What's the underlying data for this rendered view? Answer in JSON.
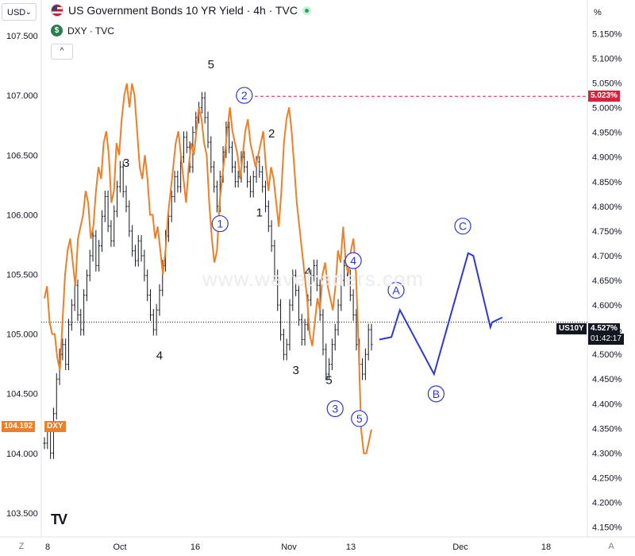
{
  "toolbar": {
    "currency_label": "USD",
    "percent_label": "%",
    "collapse_glyph": "^",
    "zoom_label": "Z",
    "scale_label": "A"
  },
  "legend": {
    "main_title": "US Government Bonds 10 YR Yield · 4h · TVC",
    "main_icon": "us-flag-icon",
    "second_title": "DXY · TVC",
    "second_icon": "dollar-icon",
    "status": "market-open"
  },
  "watermark": "www.wavetraders.com",
  "logo": "TV",
  "colors": {
    "yield": "#131722",
    "dxy": "#f07e26",
    "waves": "#2f36d4",
    "target": "#d6223f",
    "yield_badge": "#131722"
  },
  "chart_data": {
    "type": "line",
    "title": "US Government Bonds 10 YR Yield · 4h · TVC",
    "x_ticks": [
      "8",
      "Oct",
      "16",
      "Nov",
      "13",
      "Dec",
      "18"
    ],
    "y_left_ticks": [
      "107.500",
      "107.000",
      "106.500",
      "106.000",
      "105.500",
      "105.000",
      "104.500",
      "104.000",
      "103.500"
    ],
    "y_right_ticks": [
      "5.150%",
      "5.100%",
      "5.050%",
      "5.000%",
      "4.950%",
      "4.900%",
      "4.850%",
      "4.800%",
      "4.750%",
      "4.700%",
      "4.650%",
      "4.600%",
      "4.550%",
      "4.500%",
      "4.450%",
      "4.400%",
      "4.350%",
      "4.300%",
      "4.250%",
      "4.200%",
      "4.150%"
    ],
    "y_left_range": [
      103.3,
      107.6
    ],
    "y_right_range": [
      4.13,
      5.17
    ],
    "grid": false,
    "series": [
      {
        "name": "DXY",
        "axis": "left",
        "values": [
          105.3,
          105.4,
          105.1,
          105.0,
          105.0,
          104.8,
          104.7,
          105.1,
          105.5,
          105.7,
          105.8,
          105.6,
          105.4,
          105.8,
          105.9,
          106.0,
          106.2,
          106.1,
          105.8,
          105.9,
          106.2,
          106.4,
          106.3,
          106.6,
          106.7,
          106.5,
          106.1,
          106.2,
          106.6,
          106.5,
          106.8,
          107.0,
          107.1,
          106.9,
          107.1,
          107.0,
          106.7,
          106.4,
          106.3,
          106.5,
          106.3,
          106.0,
          106.0,
          105.8,
          105.9,
          105.7,
          105.5,
          105.7,
          106.0,
          106.2,
          106.4,
          106.6,
          106.7,
          106.5,
          106.3,
          106.1,
          106.4,
          106.6,
          106.5,
          106.7,
          106.9,
          106.8,
          106.6,
          106.5,
          106.1,
          105.8,
          105.6,
          105.7,
          106.1,
          106.3,
          106.5,
          106.7,
          106.9,
          106.7,
          106.6,
          106.5,
          106.3,
          106.5,
          106.7,
          106.8,
          106.6,
          106.5,
          106.4,
          106.5,
          106.6,
          106.7,
          106.4,
          106.2,
          106.4,
          106.3,
          106.1,
          105.9,
          106.2,
          106.6,
          106.8,
          106.9,
          106.7,
          106.4,
          106.1,
          105.9,
          105.7,
          105.5,
          105.3,
          105.0,
          104.9,
          105.1,
          105.3,
          105.2,
          105.5,
          105.6,
          105.4,
          105.3,
          105.2,
          105.4,
          105.7,
          105.6,
          105.9,
          105.6,
          105.5,
          105.7,
          105.8,
          105.5,
          104.9,
          104.2,
          104.0,
          104.0,
          104.1,
          104.2
        ]
      },
      {
        "name": "US10Y",
        "axis": "right",
        "values": [
          4.32,
          4.35,
          4.3,
          4.38,
          4.45,
          4.5,
          4.52,
          4.48,
          4.56,
          4.6,
          4.64,
          4.58,
          4.55,
          4.62,
          4.66,
          4.7,
          4.74,
          4.68,
          4.72,
          4.78,
          4.82,
          4.76,
          4.73,
          4.79,
          4.84,
          4.88,
          4.83,
          4.8,
          4.75,
          4.71,
          4.69,
          4.73,
          4.7,
          4.66,
          4.62,
          4.58,
          4.55,
          4.59,
          4.63,
          4.68,
          4.74,
          4.78,
          4.82,
          4.86,
          4.84,
          4.9,
          4.94,
          4.92,
          4.88,
          4.95,
          4.98,
          5.0,
          5.02,
          4.98,
          4.93,
          4.88,
          4.84,
          4.8,
          4.86,
          4.91,
          4.96,
          4.92,
          4.88,
          4.85,
          4.86,
          4.9,
          4.88,
          4.85,
          4.83,
          4.86,
          4.89,
          4.87,
          4.84,
          4.8,
          4.76,
          4.72,
          4.66,
          4.6,
          4.54,
          4.5,
          4.52,
          4.6,
          4.66,
          4.63,
          4.57,
          4.53,
          4.56,
          4.61,
          4.66,
          4.68,
          4.64,
          4.58,
          4.51,
          4.46,
          4.48,
          4.52,
          4.55,
          4.6,
          4.65,
          4.68,
          4.66,
          4.62,
          4.58,
          4.52,
          4.48,
          4.46,
          4.5,
          4.55,
          4.52
        ],
        "last_value": "4.527%",
        "last_label": "US10Y",
        "countdown": "01:42:17"
      }
    ],
    "projection": [
      {
        "x": 0.0,
        "y": 4.53
      },
      {
        "x": 0.7,
        "y": 4.535
      },
      {
        "x": 1.2,
        "y": 4.59
      },
      {
        "x": 3.2,
        "y": 4.46
      },
      {
        "x": 5.2,
        "y": 4.705
      },
      {
        "x": 5.5,
        "y": 4.7
      },
      {
        "x": 6.5,
        "y": 4.555
      },
      {
        "x": 6.6,
        "y": 4.565
      },
      {
        "x": 7.2,
        "y": 4.575
      }
    ],
    "target_line": {
      "value": 5.023,
      "label": "5.023%"
    },
    "dxy_last": {
      "value": 104.192,
      "label_value": "104.192",
      "label_name": "DXY"
    },
    "dotted_ref": 105.1,
    "labels_plain": [
      {
        "text": "5",
        "x": 55,
        "y": 5.08
      },
      {
        "text": "3",
        "x": 27,
        "y": 4.88
      },
      {
        "text": "4",
        "x": 38,
        "y": 4.49
      },
      {
        "text": "2",
        "x": 75,
        "y": 4.94
      },
      {
        "text": "1",
        "x": 71,
        "y": 4.78
      },
      {
        "text": "3",
        "x": 83,
        "y": 4.46
      },
      {
        "text": "4",
        "x": 87,
        "y": 4.66
      },
      {
        "text": "5",
        "x": 94,
        "y": 4.44
      }
    ],
    "labels_circled": [
      {
        "text": "2",
        "x": 66,
        "y": 5.025
      },
      {
        "text": "1",
        "x": 58,
        "y": 4.765
      },
      {
        "text": "4",
        "x": 102,
        "y": 4.69
      },
      {
        "text": "3",
        "x": 96,
        "y": 4.39
      },
      {
        "text": "5",
        "x": 104,
        "y": 4.37
      },
      {
        "text": "A",
        "x": 113,
        "y": 4.63
      },
      {
        "text": "B",
        "x": 125,
        "y": 4.42
      },
      {
        "text": "C",
        "x": 133,
        "y": 4.76
      }
    ]
  }
}
